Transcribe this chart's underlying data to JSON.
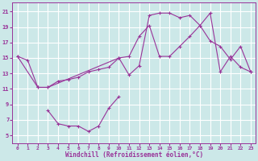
{
  "xlabel": "Windchill (Refroidissement éolien,°C)",
  "bg_color": "#cce8e8",
  "line_color": "#993399",
  "grid_color": "#ffffff",
  "xmin": 0,
  "xmax": 23,
  "ymin": 4,
  "ymax": 22,
  "yticks": [
    5,
    7,
    9,
    11,
    13,
    15,
    17,
    19,
    21
  ],
  "xticks": [
    0,
    1,
    2,
    3,
    4,
    5,
    6,
    7,
    8,
    9,
    10,
    11,
    12,
    13,
    14,
    15,
    16,
    17,
    18,
    19,
    20,
    21,
    22,
    23
  ],
  "curve1_x": [
    0,
    1,
    2,
    3,
    10,
    11,
    12,
    13,
    14,
    15,
    16,
    17,
    18,
    19,
    20,
    21,
    22,
    23
  ],
  "curve1_y": [
    15.2,
    14.7,
    11.2,
    11.2,
    15.0,
    15.2,
    17.8,
    19.2,
    15.2,
    15.2,
    16.5,
    17.8,
    19.2,
    17.2,
    16.5,
    14.8,
    16.5,
    13.2
  ],
  "curve2_x": [
    0,
    2,
    3,
    4,
    5,
    6,
    7,
    8,
    9,
    10,
    11,
    12,
    13,
    14,
    15,
    16,
    17,
    18,
    19,
    20,
    21,
    22,
    23
  ],
  "curve2_y": [
    15.2,
    11.2,
    11.2,
    12.0,
    12.2,
    12.5,
    13.2,
    13.5,
    13.8,
    15.0,
    12.8,
    14.0,
    20.5,
    20.8,
    20.8,
    20.2,
    20.5,
    19.2,
    20.8,
    13.2,
    15.2,
    13.8,
    13.2
  ],
  "curve3_x": [
    3,
    4,
    5,
    6,
    7,
    8,
    9,
    10
  ],
  "curve3_y": [
    8.2,
    6.5,
    6.2,
    6.2,
    5.5,
    6.2,
    8.5,
    10.0
  ]
}
